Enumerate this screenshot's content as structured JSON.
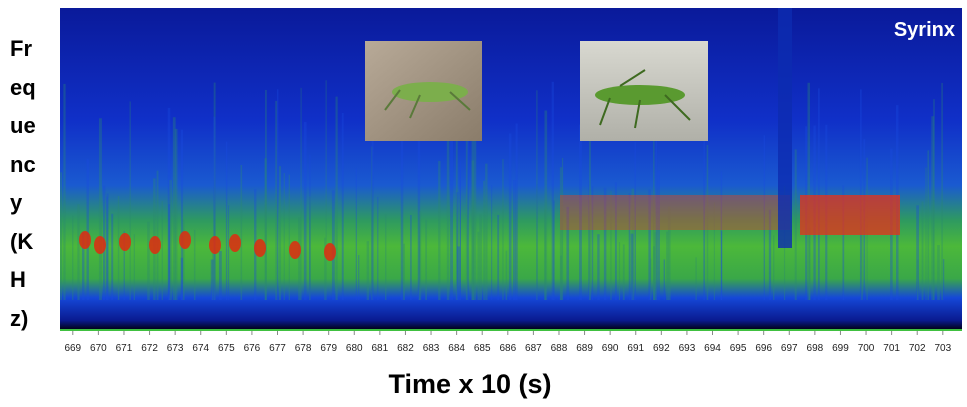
{
  "chart_data": {
    "type": "spectrogram",
    "xlabel": "Time x 10 (s)",
    "ylabel": "Frequency (KHz)",
    "annotation": "Syrinx",
    "xlim": [
      668.5,
      703.75
    ],
    "xticks": [
      669,
      670,
      671,
      672,
      673,
      674,
      675,
      676,
      677,
      678,
      679,
      680,
      681,
      682,
      683,
      684,
      685,
      686,
      687,
      688,
      689,
      690,
      691,
      692,
      693,
      694,
      695,
      696,
      697,
      698,
      699,
      700,
      701,
      702,
      703
    ]
  }
}
